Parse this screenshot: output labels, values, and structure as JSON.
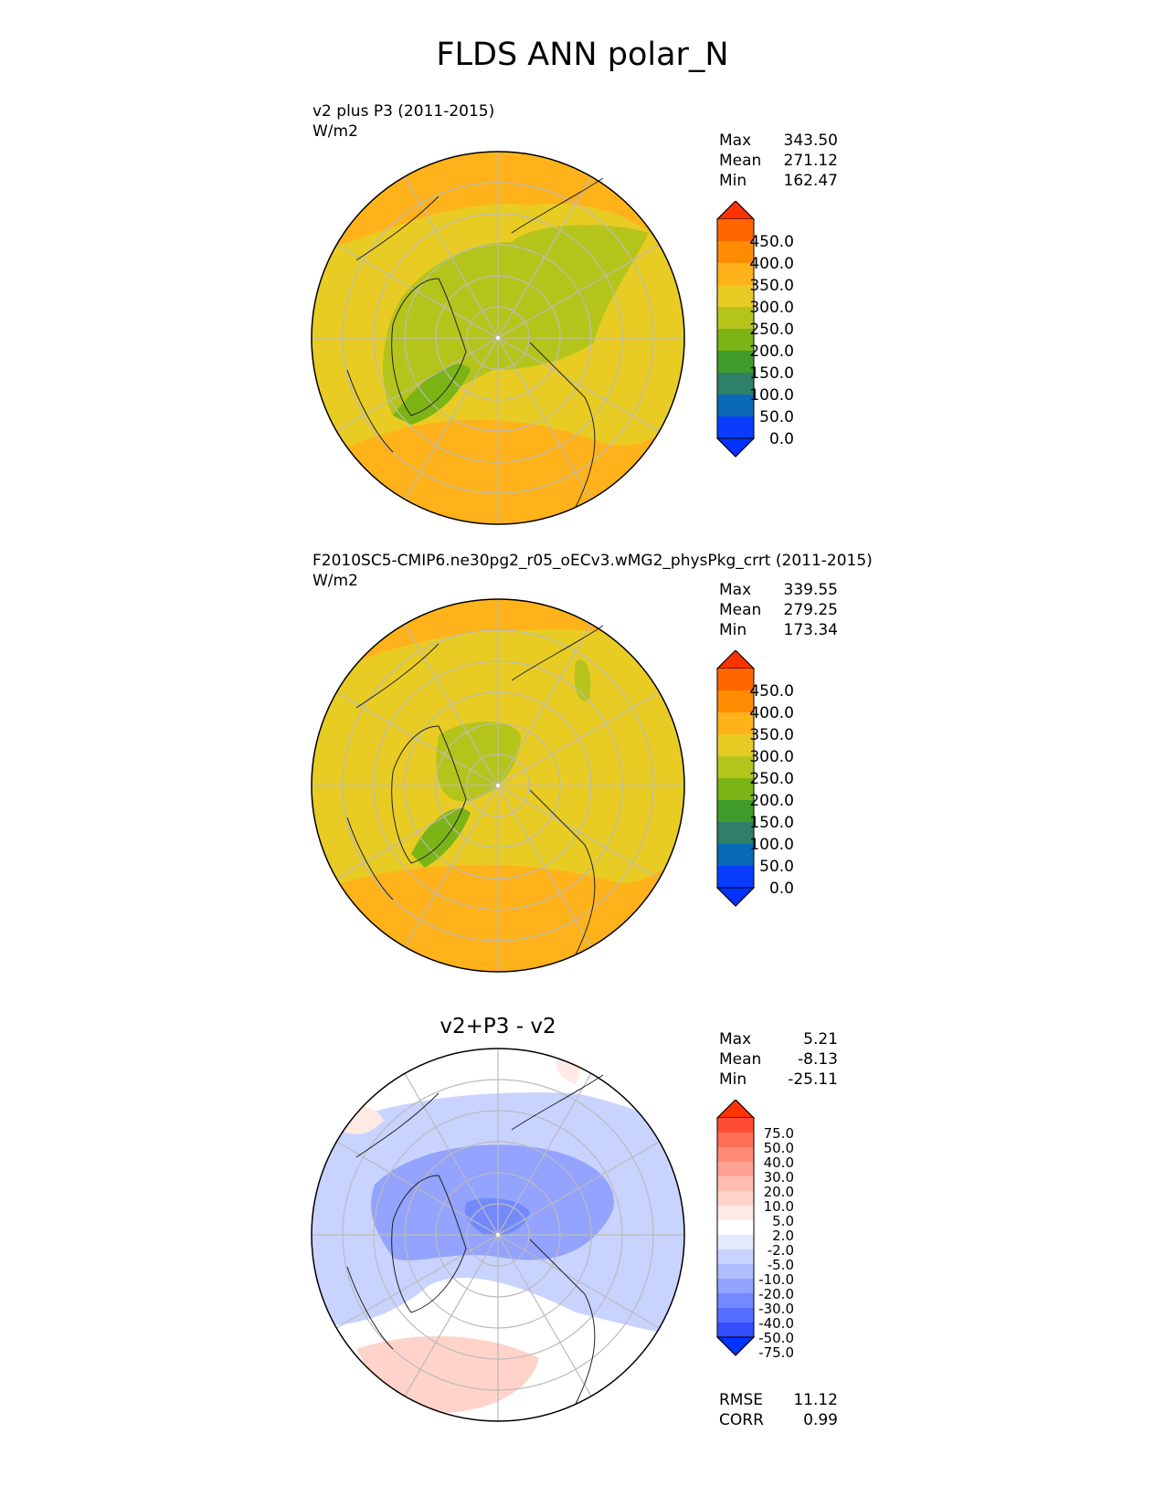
{
  "figure": {
    "title": "FLDS ANN polar_N"
  },
  "panels": [
    {
      "id": "test",
      "title": "",
      "subtitle": "v2 plus P3 (2011-2015)",
      "units": "W/m2",
      "stats": [
        {
          "label": "Max",
          "value": "343.50"
        },
        {
          "label": "Mean",
          "value": "271.12"
        },
        {
          "label": "Min",
          "value": "162.47"
        }
      ],
      "colorbar_ticks": [
        "450.0",
        "400.0",
        "350.0",
        "300.0",
        "250.0",
        "200.0",
        "150.0",
        "100.0",
        "50.0",
        "0.0"
      ],
      "colorbar_colors": [
        "#ff3300",
        "#ff6600",
        "#ff8c00",
        "#ffb21a",
        "#e8cc24",
        "#b5c41b",
        "#7cb315",
        "#3f9c2a",
        "#2e8068",
        "#0a6ab5",
        "#0a3cff",
        "#0033ff"
      ]
    },
    {
      "id": "reference",
      "title": "",
      "subtitle": "F2010SC5-CMIP6.ne30pg2_r05_oECv3.wMG2_physPkg_crrt (2011-2015)",
      "units": "W/m2",
      "stats": [
        {
          "label": "Max",
          "value": "339.55"
        },
        {
          "label": "Mean",
          "value": "279.25"
        },
        {
          "label": "Min",
          "value": "173.34"
        }
      ],
      "colorbar_ticks": [
        "450.0",
        "400.0",
        "350.0",
        "300.0",
        "250.0",
        "200.0",
        "150.0",
        "100.0",
        "50.0",
        "0.0"
      ],
      "colorbar_colors": [
        "#ff3300",
        "#ff6600",
        "#ff8c00",
        "#ffb21a",
        "#e8cc24",
        "#b5c41b",
        "#7cb315",
        "#3f9c2a",
        "#2e8068",
        "#0a6ab5",
        "#0a3cff",
        "#0033ff"
      ]
    },
    {
      "id": "difference",
      "title": "v2+P3 - v2",
      "subtitle": "",
      "units": "",
      "stats": [
        {
          "label": "Max",
          "value": "5.21"
        },
        {
          "label": "Mean",
          "value": "-8.13"
        },
        {
          "label": "Min",
          "value": "-25.11"
        }
      ],
      "colorbar_ticks": [
        "75.0",
        "50.0",
        "40.0",
        "30.0",
        "20.0",
        "10.0",
        "5.0",
        "2.0",
        "-2.0",
        "-5.0",
        "-10.0",
        "-20.0",
        "-30.0",
        "-40.0",
        "-50.0",
        "-75.0"
      ],
      "colorbar_colors": [
        "#ff3300",
        "#ff4d33",
        "#ff6e55",
        "#ff8a73",
        "#ffa393",
        "#ffbdb0",
        "#ffd3ca",
        "#ffe9e4",
        "#ffffff",
        "#e4e9ff",
        "#c9d3ff",
        "#b0bdff",
        "#93a3ff",
        "#738aff",
        "#556eff",
        "#334dff",
        "#0033ff"
      ],
      "metrics": [
        {
          "label": "RMSE",
          "value": "11.12"
        },
        {
          "label": "CORR",
          "value": "0.99"
        }
      ]
    }
  ]
}
